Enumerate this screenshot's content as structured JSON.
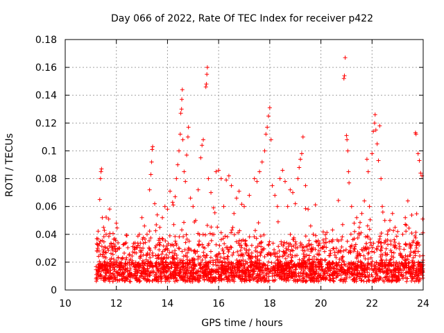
{
  "chart_data": {
    "type": "scatter",
    "title": "Day 066 of 2022, Rate Of TEC Index for receiver p422",
    "xlabel": "GPS time / hours",
    "ylabel": "ROTI / TECUs",
    "xlim": [
      10,
      24
    ],
    "ylim": [
      0,
      0.18
    ],
    "x_ticks": [
      "10",
      "12",
      "14",
      "16",
      "18",
      "20",
      "22",
      "24"
    ],
    "y_ticks": [
      "0",
      "0.02",
      "0.04",
      "0.06",
      "0.08",
      "0.1",
      "0.12",
      "0.14",
      "0.16",
      "0.18"
    ],
    "grid": true,
    "marker": "+",
    "color": "#ff0000",
    "series": [
      {
        "points": [
          [
            11.25,
            0.028
          ],
          [
            11.3,
            0.032
          ],
          [
            11.35,
            0.065
          ],
          [
            11.38,
            0.08
          ],
          [
            11.4,
            0.085
          ],
          [
            11.42,
            0.087
          ],
          [
            11.45,
            0.052
          ],
          [
            11.5,
            0.045
          ],
          [
            11.6,
            0.04
          ],
          [
            11.7,
            0.051
          ],
          [
            11.8,
            0.033
          ],
          [
            11.9,
            0.022
          ],
          [
            12.0,
            0.048
          ],
          [
            12.1,
            0.03
          ],
          [
            12.3,
            0.033
          ],
          [
            12.5,
            0.025
          ],
          [
            12.7,
            0.03
          ],
          [
            12.9,
            0.04
          ],
          [
            13.0,
            0.052
          ],
          [
            13.1,
            0.046
          ],
          [
            13.2,
            0.04
          ],
          [
            13.3,
            0.072
          ],
          [
            13.35,
            0.083
          ],
          [
            13.38,
            0.092
          ],
          [
            13.4,
            0.101
          ],
          [
            13.42,
            0.103
          ],
          [
            13.5,
            0.062
          ],
          [
            13.6,
            0.054
          ],
          [
            13.7,
            0.045
          ],
          [
            13.8,
            0.052
          ],
          [
            13.9,
            0.06
          ],
          [
            14.0,
            0.058
          ],
          [
            14.1,
            0.071
          ],
          [
            14.2,
            0.063
          ],
          [
            14.3,
            0.067
          ],
          [
            14.35,
            0.08
          ],
          [
            14.4,
            0.09
          ],
          [
            14.45,
            0.1
          ],
          [
            14.5,
            0.112
          ],
          [
            14.52,
            0.127
          ],
          [
            14.55,
            0.13
          ],
          [
            14.56,
            0.137
          ],
          [
            14.58,
            0.144
          ],
          [
            14.6,
            0.108
          ],
          [
            14.65,
            0.085
          ],
          [
            14.7,
            0.078
          ],
          [
            14.75,
            0.097
          ],
          [
            14.8,
            0.11
          ],
          [
            14.82,
            0.117
          ],
          [
            14.9,
            0.066
          ],
          [
            15.0,
            0.06
          ],
          [
            15.1,
            0.05
          ],
          [
            15.2,
            0.072
          ],
          [
            15.3,
            0.095
          ],
          [
            15.35,
            0.104
          ],
          [
            15.4,
            0.108
          ],
          [
            15.5,
            0.146
          ],
          [
            15.52,
            0.148
          ],
          [
            15.54,
            0.155
          ],
          [
            15.56,
            0.16
          ],
          [
            15.6,
            0.08
          ],
          [
            15.7,
            0.07
          ],
          [
            15.8,
            0.059
          ],
          [
            15.9,
            0.085
          ],
          [
            16.0,
            0.086
          ],
          [
            16.1,
            0.08
          ],
          [
            16.2,
            0.06
          ],
          [
            16.3,
            0.079
          ],
          [
            16.4,
            0.082
          ],
          [
            16.5,
            0.075
          ],
          [
            16.6,
            0.055
          ],
          [
            16.7,
            0.066
          ],
          [
            16.8,
            0.071
          ],
          [
            17.0,
            0.06
          ],
          [
            17.2,
            0.068
          ],
          [
            17.4,
            0.08
          ],
          [
            17.5,
            0.078
          ],
          [
            17.6,
            0.085
          ],
          [
            17.7,
            0.092
          ],
          [
            17.8,
            0.1
          ],
          [
            17.85,
            0.112
          ],
          [
            17.9,
            0.117
          ],
          [
            17.95,
            0.125
          ],
          [
            18.0,
            0.131
          ],
          [
            18.05,
            0.108
          ],
          [
            18.1,
            0.075
          ],
          [
            18.2,
            0.068
          ],
          [
            18.3,
            0.06
          ],
          [
            18.4,
            0.08
          ],
          [
            18.5,
            0.086
          ],
          [
            18.6,
            0.078
          ],
          [
            18.7,
            0.06
          ],
          [
            18.8,
            0.072
          ],
          [
            18.9,
            0.07
          ],
          [
            19.0,
            0.062
          ],
          [
            19.1,
            0.08
          ],
          [
            19.15,
            0.088
          ],
          [
            19.2,
            0.094
          ],
          [
            19.25,
            0.098
          ],
          [
            19.3,
            0.11
          ],
          [
            19.4,
            0.075
          ],
          [
            19.5,
            0.058
          ],
          [
            19.6,
            0.046
          ],
          [
            19.7,
            0.04
          ],
          [
            19.8,
            0.035
          ],
          [
            19.9,
            0.032
          ],
          [
            20.0,
            0.03
          ],
          [
            20.2,
            0.034
          ],
          [
            20.4,
            0.035
          ],
          [
            20.6,
            0.03
          ],
          [
            20.8,
            0.036
          ],
          [
            20.85,
            0.047
          ],
          [
            20.9,
            0.152
          ],
          [
            20.92,
            0.154
          ],
          [
            20.95,
            0.167
          ],
          [
            21.0,
            0.111
          ],
          [
            21.02,
            0.108
          ],
          [
            21.05,
            0.1
          ],
          [
            21.08,
            0.085
          ],
          [
            21.1,
            0.077
          ],
          [
            21.2,
            0.06
          ],
          [
            21.3,
            0.048
          ],
          [
            21.4,
            0.052
          ],
          [
            21.5,
            0.045
          ],
          [
            21.6,
            0.055
          ],
          [
            21.7,
            0.064
          ],
          [
            21.8,
            0.094
          ],
          [
            21.85,
            0.085
          ],
          [
            21.9,
            0.06
          ],
          [
            22.0,
            0.098
          ],
          [
            22.05,
            0.114
          ],
          [
            22.1,
            0.12
          ],
          [
            22.12,
            0.126
          ],
          [
            22.15,
            0.115
          ],
          [
            22.2,
            0.105
          ],
          [
            22.25,
            0.093
          ],
          [
            22.3,
            0.118
          ],
          [
            22.35,
            0.08
          ],
          [
            22.4,
            0.06
          ],
          [
            22.5,
            0.05
          ],
          [
            22.6,
            0.04
          ],
          [
            22.7,
            0.05
          ],
          [
            22.8,
            0.055
          ],
          [
            22.9,
            0.045
          ],
          [
            23.0,
            0.042
          ],
          [
            23.2,
            0.04
          ],
          [
            23.3,
            0.052
          ],
          [
            23.4,
            0.064
          ],
          [
            23.5,
            0.03
          ],
          [
            23.7,
            0.113
          ],
          [
            23.72,
            0.112
          ],
          [
            23.8,
            0.098
          ],
          [
            23.85,
            0.093
          ],
          [
            23.9,
            0.084
          ],
          [
            23.95,
            0.082
          ],
          [
            23.98,
            0.051
          ],
          [
            23.5,
            0.025
          ],
          [
            23.6,
            0.02
          ],
          [
            23.8,
            0.015
          ],
          [
            23.9,
            0.012
          ]
        ]
      }
    ]
  }
}
